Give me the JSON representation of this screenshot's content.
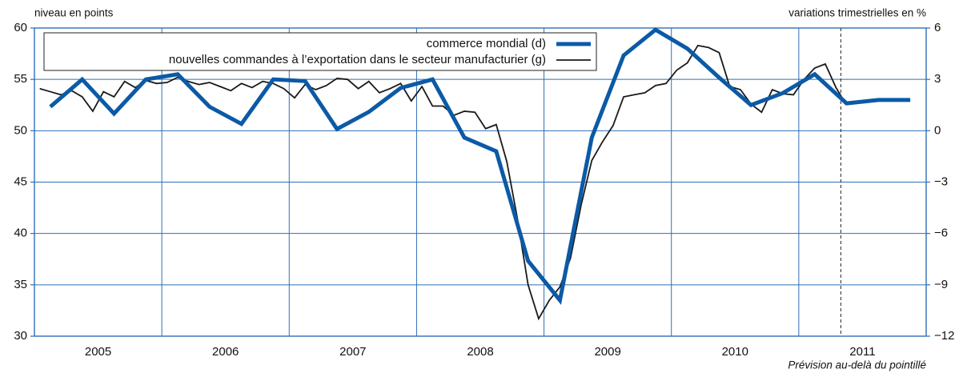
{
  "chart_data": {
    "type": "line",
    "left_axis_label": "niveau en points",
    "right_axis_label": "variations trimestrielles en %",
    "annotation": "Prévision au-delà du pointillé",
    "forecast_start": 2011.33,
    "categories": [
      "2005",
      "2006",
      "2007",
      "2008",
      "2009",
      "2010",
      "2011"
    ],
    "xlim": [
      2005,
      2012
    ],
    "ylim": [
      30,
      60
    ],
    "yticks": [
      30,
      35,
      40,
      45,
      50,
      55,
      60
    ],
    "y2lim": [
      -12,
      6
    ],
    "y2ticks": [
      {
        "value": -12,
        "label": "−12"
      },
      {
        "value": -9,
        "label": "−9"
      },
      {
        "value": -6,
        "label": "−6"
      },
      {
        "value": -3,
        "label": "−3"
      },
      0,
      3,
      6
    ],
    "grid": true,
    "grid_color": "#2f6fb6",
    "series": [
      {
        "name": "commerce mondial (d)",
        "color": "#0b5aa6",
        "axis": "y2",
        "width": 5,
        "x": [
          2005.125,
          2005.375,
          2005.625,
          2005.875,
          2006.125,
          2006.375,
          2006.625,
          2006.875,
          2007.125,
          2007.375,
          2007.625,
          2007.875,
          2008.125,
          2008.375,
          2008.625,
          2008.875,
          2009.125,
          2009.375,
          2009.625,
          2009.875,
          2010.125,
          2010.375,
          2010.625,
          2010.875,
          2011.125,
          2011.375,
          2011.625,
          2011.875
        ],
        "values": [
          1.4,
          3.0,
          1.0,
          3.0,
          3.3,
          1.4,
          0.4,
          3.0,
          2.9,
          0.1,
          1.1,
          2.5,
          3.0,
          -0.4,
          -1.2,
          -7.6,
          -9.9,
          -0.4,
          4.4,
          5.9,
          4.8,
          3.1,
          1.5,
          2.2,
          3.3,
          1.6,
          1.8,
          1.8
        ]
      },
      {
        "name": "nouvelles commandes à l’exportation dans le secteur manufacturier (g)",
        "color": "#1a1a1a",
        "axis": "y",
        "width": 1.8,
        "x": [
          2005.042,
          2005.125,
          2005.208,
          2005.292,
          2005.375,
          2005.458,
          2005.542,
          2005.625,
          2005.708,
          2005.792,
          2005.875,
          2005.958,
          2006.042,
          2006.125,
          2006.208,
          2006.292,
          2006.375,
          2006.458,
          2006.542,
          2006.625,
          2006.708,
          2006.792,
          2006.875,
          2006.958,
          2007.042,
          2007.125,
          2007.208,
          2007.292,
          2007.375,
          2007.458,
          2007.542,
          2007.625,
          2007.708,
          2007.792,
          2007.875,
          2007.958,
          2008.042,
          2008.125,
          2008.208,
          2008.292,
          2008.375,
          2008.458,
          2008.542,
          2008.625,
          2008.708,
          2008.792,
          2008.875,
          2008.958,
          2009.042,
          2009.125,
          2009.208,
          2009.292,
          2009.375,
          2009.458,
          2009.542,
          2009.625,
          2009.708,
          2009.792,
          2009.875,
          2009.958,
          2010.042,
          2010.125,
          2010.208,
          2010.292,
          2010.375,
          2010.458,
          2010.542,
          2010.625,
          2010.708,
          2010.792,
          2010.875,
          2010.958,
          2011.042,
          2011.125,
          2011.208,
          2011.292,
          2011.375
        ],
        "values": [
          54.1,
          53.8,
          53.5,
          53.9,
          53.3,
          51.9,
          53.8,
          53.3,
          54.8,
          54.2,
          54.9,
          54.6,
          54.7,
          55.2,
          54.8,
          54.5,
          54.7,
          54.3,
          53.9,
          54.6,
          54.2,
          54.8,
          54.6,
          54.1,
          53.2,
          54.5,
          54.0,
          54.4,
          55.1,
          55.0,
          54.1,
          54.8,
          53.7,
          54.1,
          54.6,
          52.9,
          54.3,
          52.4,
          52.4,
          51.5,
          51.9,
          51.8,
          50.2,
          50.6,
          47.0,
          41.4,
          35.0,
          31.7,
          33.5,
          34.8,
          37.6,
          42.8,
          47.1,
          48.9,
          50.5,
          53.3,
          53.5,
          53.7,
          54.4,
          54.6,
          55.9,
          56.6,
          58.3,
          58.1,
          57.6,
          54.3,
          54.0,
          52.6,
          51.8,
          54.0,
          53.6,
          53.5,
          55.0,
          56.1,
          56.5,
          54.2,
          52.5
        ]
      }
    ]
  }
}
